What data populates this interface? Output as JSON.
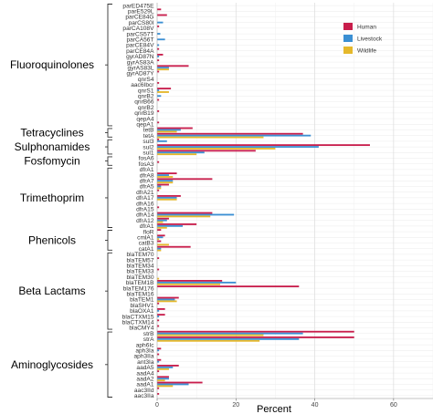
{
  "chart_data": {
    "type": "bar",
    "orientation": "horizontal",
    "xlabel": "Percent",
    "xlim": [
      0,
      70
    ],
    "xticks": [
      0,
      20,
      40,
      60
    ],
    "grid": true,
    "legend_position": "top-right",
    "series": [
      {
        "name": "Human",
        "color": "#c81d4b"
      },
      {
        "name": "Livestock",
        "color": "#3b8fd3"
      },
      {
        "name": "Wildlife",
        "color": "#e5b82b"
      }
    ],
    "groups": [
      {
        "name": "Fluoroquinolones",
        "genes": [
          {
            "gene": "parED475E",
            "values": [
              0,
              0,
              0
            ]
          },
          {
            "gene": "parE529L",
            "values": [
              1,
              0,
              0
            ]
          },
          {
            "gene": "parCE84G",
            "values": [
              2.5,
              0,
              0
            ]
          },
          {
            "gene": "parCS80I",
            "values": [
              0,
              1.5,
              0
            ]
          },
          {
            "gene": "parCA108V",
            "values": [
              0.5,
              0,
              0
            ]
          },
          {
            "gene": "parCS57T",
            "values": [
              0,
              0.8,
              0
            ]
          },
          {
            "gene": "parCA56T",
            "values": [
              0,
              2,
              0
            ]
          },
          {
            "gene": "parCE84V",
            "values": [
              0,
              0.5,
              0
            ]
          },
          {
            "gene": "parCE84A",
            "values": [
              0.5,
              0,
              0
            ]
          },
          {
            "gene": "gyrAD87N",
            "values": [
              1.5,
              0.5,
              0
            ]
          },
          {
            "gene": "gyrAS83A",
            "values": [
              0.5,
              0,
              0
            ]
          },
          {
            "gene": "gyrAS83L",
            "values": [
              8,
              3,
              3
            ]
          },
          {
            "gene": "gyrAD87Y",
            "values": [
              0.5,
              0,
              0
            ]
          },
          {
            "gene": "qnrS4",
            "values": [
              0,
              0,
              0
            ]
          },
          {
            "gene": "aac6Ibcr",
            "values": [
              0.5,
              0,
              0
            ]
          },
          {
            "gene": "qnrS1",
            "values": [
              3.5,
              0.5,
              3
            ]
          },
          {
            "gene": "qnrB2",
            "values": [
              0,
              1,
              0
            ]
          },
          {
            "gene": "qnrB66",
            "values": [
              0.5,
              0,
              0
            ]
          },
          {
            "gene": "qnrB2",
            "values": [
              0,
              0,
              0
            ]
          },
          {
            "gene": "qnrB19",
            "values": [
              0.5,
              0,
              0
            ]
          },
          {
            "gene": "qepA4",
            "values": [
              0,
              0,
              0
            ]
          },
          {
            "gene": "qepA1",
            "values": [
              0.5,
              0,
              0
            ]
          }
        ]
      },
      {
        "name": "Tetracyclines",
        "genes": [
          {
            "gene": "tetB",
            "values": [
              9,
              6,
              5
            ]
          },
          {
            "gene": "tetA",
            "values": [
              37,
              39,
              27
            ]
          }
        ]
      },
      {
        "name": "Sulphonamides",
        "genes": [
          {
            "gene": "sul3",
            "values": [
              0.5,
              2.5,
              0
            ]
          },
          {
            "gene": "sul2",
            "values": [
              54,
              41,
              30
            ]
          },
          {
            "gene": "sul1",
            "values": [
              25,
              12,
              10
            ]
          }
        ]
      },
      {
        "name": "Fosfomycin",
        "genes": [
          {
            "gene": "fosA6",
            "values": [
              0,
              0,
              0
            ]
          },
          {
            "gene": "fosA3",
            "values": [
              0.5,
              0,
              0
            ]
          }
        ]
      },
      {
        "name": "Trimethoprim",
        "genes": [
          {
            "gene": "dfrA1",
            "values": [
              0,
              0,
              0
            ]
          },
          {
            "gene": "dfrA8",
            "values": [
              5,
              3,
              4
            ]
          },
          {
            "gene": "dfrA7",
            "values": [
              14,
              4,
              4
            ]
          },
          {
            "gene": "dfrA5",
            "values": [
              3,
              1,
              1
            ]
          },
          {
            "gene": "dfrA21",
            "values": [
              0.5,
              0,
              0
            ]
          },
          {
            "gene": "dfrA17",
            "values": [
              6,
              5,
              5
            ]
          },
          {
            "gene": "dfrA16",
            "values": [
              0,
              0,
              0
            ]
          },
          {
            "gene": "dfrA15",
            "values": [
              0.5,
              0,
              0
            ]
          },
          {
            "gene": "dfrA14",
            "values": [
              14,
              19.5,
              13.5
            ]
          },
          {
            "gene": "dfrA12",
            "values": [
              3,
              2.5,
              1.5
            ]
          },
          {
            "gene": "dfrA1",
            "values": [
              10,
              6.5,
              2.5
            ]
          }
        ]
      },
      {
        "name": "Phenicols",
        "genes": [
          {
            "gene": "floR",
            "values": [
              1,
              0,
              0
            ]
          },
          {
            "gene": "cmlA1",
            "values": [
              2,
              1.5,
              0.5
            ]
          },
          {
            "gene": "catB3",
            "values": [
              1,
              0,
              3
            ]
          },
          {
            "gene": "catA1",
            "values": [
              8.5,
              1,
              1
            ]
          }
        ]
      },
      {
        "name": "Beta Lactams",
        "genes": [
          {
            "gene": "blaTEM70",
            "values": [
              0,
              0,
              0
            ]
          },
          {
            "gene": "blaTEM57",
            "values": [
              0.5,
              0,
              0
            ]
          },
          {
            "gene": "blaTEM34",
            "values": [
              0,
              0,
              0
            ]
          },
          {
            "gene": "blaTEM33",
            "values": [
              0.5,
              0,
              0
            ]
          },
          {
            "gene": "blaTEM30",
            "values": [
              0,
              0,
              0.5
            ]
          },
          {
            "gene": "blaTEM1B",
            "values": [
              16.5,
              20,
              16
            ]
          },
          {
            "gene": "blaTEM176",
            "values": [
              36,
              0,
              0
            ]
          },
          {
            "gene": "blaTEM16",
            "values": [
              0,
              0,
              0
            ]
          },
          {
            "gene": "blaTEM1",
            "values": [
              5.5,
              4.5,
              5
            ]
          },
          {
            "gene": "blaSHV1",
            "values": [
              0.5,
              0,
              0
            ]
          },
          {
            "gene": "blaOXA1",
            "values": [
              2,
              0.5,
              0
            ]
          },
          {
            "gene": "blaCTXM15",
            "values": [
              2,
              0.5,
              0
            ]
          },
          {
            "gene": "blaCTXM14",
            "values": [
              0.5,
              0,
              0
            ]
          },
          {
            "gene": "blaCMY4",
            "values": [
              0.5,
              0,
              0
            ]
          }
        ]
      },
      {
        "name": "Aminoglycosides",
        "genes": [
          {
            "gene": "strB",
            "values": [
              50,
              37,
              27
            ]
          },
          {
            "gene": "strA",
            "values": [
              50,
              36,
              26
            ]
          },
          {
            "gene": "aph6Ic",
            "values": [
              0,
              0,
              0
            ]
          },
          {
            "gene": "aph3Ia",
            "values": [
              1,
              0.5,
              0
            ]
          },
          {
            "gene": "aph3IIa",
            "values": [
              0.5,
              0,
              0
            ]
          },
          {
            "gene": "ant3Ia",
            "values": [
              1,
              0.5,
              0
            ]
          },
          {
            "gene": "aadA5",
            "values": [
              5.5,
              4,
              3
            ]
          },
          {
            "gene": "aadA4",
            "values": [
              0.5,
              0,
              0
            ]
          },
          {
            "gene": "aadA2",
            "values": [
              3,
              3,
              2
            ]
          },
          {
            "gene": "aadA1",
            "values": [
              11.5,
              8,
              4
            ]
          },
          {
            "gene": "aac3IId",
            "values": [
              0.5,
              0,
              0
            ]
          },
          {
            "gene": "aac3IIa",
            "values": [
              0.5,
              0,
              0
            ]
          }
        ]
      }
    ]
  }
}
